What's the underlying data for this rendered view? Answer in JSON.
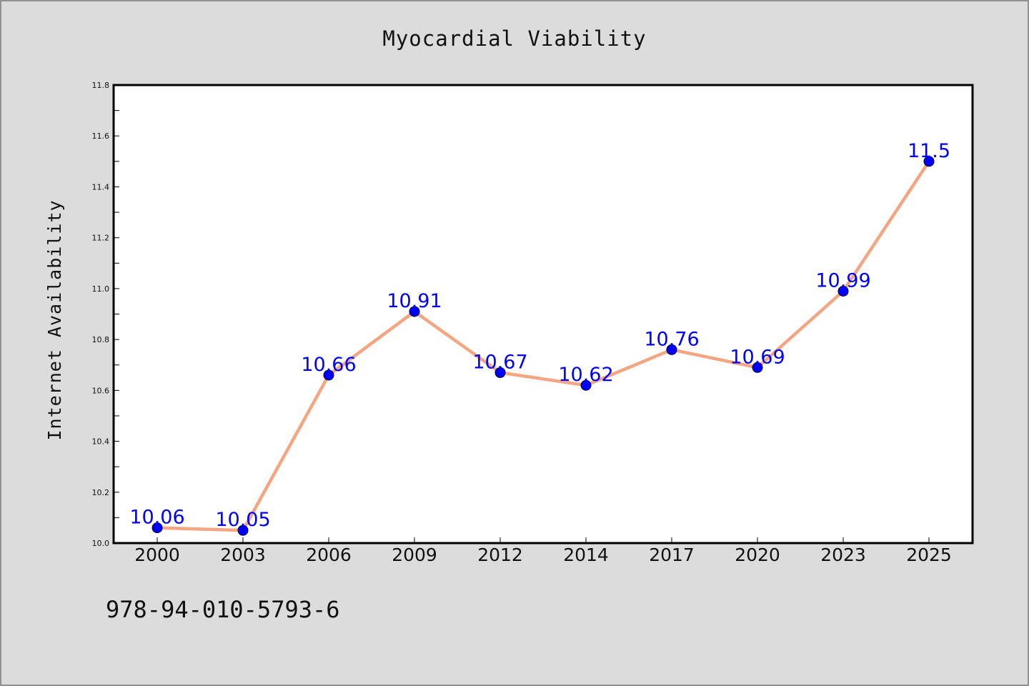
{
  "chart_data": {
    "type": "line",
    "title": "Myocardial Viability",
    "xlabel": "",
    "ylabel": "Internet Availability",
    "categories": [
      "2000",
      "2003",
      "2006",
      "2009",
      "2012",
      "2014",
      "2017",
      "2020",
      "2023",
      "2025"
    ],
    "series": [
      {
        "values": [
          10.06,
          10.05,
          10.66,
          10.91,
          10.67,
          10.62,
          10.76,
          10.69,
          10.99,
          11.5
        ],
        "labels": [
          "10.06",
          "10.05",
          "10.66",
          "10.91",
          "10.67",
          "10.62",
          "10.76",
          "10.69",
          "10.99",
          "11.5"
        ]
      }
    ],
    "ylim": [
      10.0,
      11.8
    ],
    "yticks": [
      "10.0",
      "10.2",
      "10.4",
      "10.6",
      "10.8",
      "11.0",
      "11.2",
      "11.4",
      "11.6",
      "11.8"
    ],
    "grid": false,
    "colors": {
      "line": "#f4a582",
      "marker": "#0000ff",
      "data_label": "#0000ff",
      "background": "#dcdcdc",
      "plot_background": "#ffffff"
    }
  },
  "footer": {
    "code": "978-94-010-5793-6"
  }
}
